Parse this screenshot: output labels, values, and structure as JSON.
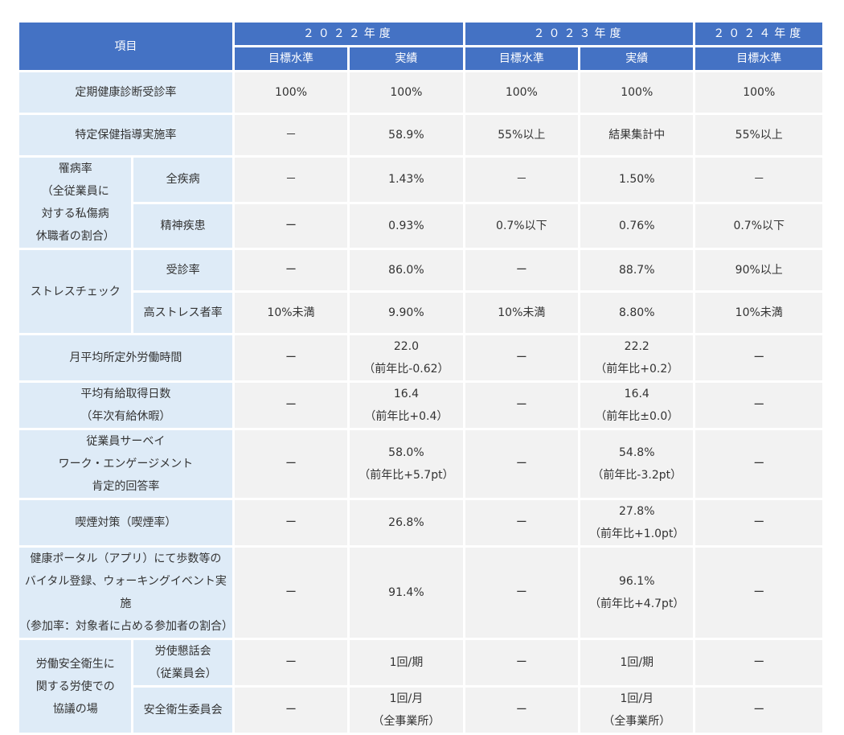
{
  "header": {
    "item": "項目",
    "years": [
      "２０２２年度",
      "２０２３年度",
      "２０２４年度"
    ],
    "sub": {
      "target": "目標水準",
      "actual": "実績"
    }
  },
  "rows": {
    "checkup": {
      "label": "定期健康診断受診率",
      "values": [
        "100%",
        "100%",
        "100%",
        "100%",
        "100%"
      ]
    },
    "guidance": {
      "label": "特定保健指導実施率",
      "values": [
        "－",
        "58.9%",
        "55%以上",
        "結果集計中",
        "55%以上"
      ]
    },
    "illness": {
      "group_lines": [
        "罹病率",
        "（全従業員に",
        "対する私傷病",
        "休職者の割合）"
      ],
      "all": {
        "label": "全疾病",
        "values": [
          "－",
          "1.43%",
          "－",
          "1.50%",
          "－"
        ]
      },
      "mental": {
        "label": "精神疾患",
        "values": [
          "ー",
          "0.93%",
          "0.7%以下",
          "0.76%",
          "0.7%以下"
        ]
      }
    },
    "stress": {
      "group": "ストレスチェック",
      "exam": {
        "label": "受診率",
        "values": [
          "ー",
          "86.0%",
          "ー",
          "88.7%",
          "90%以上"
        ]
      },
      "high": {
        "label": "高ストレス者率",
        "values": [
          "10%未満",
          "9.90%",
          "10%未満",
          "8.80%",
          "10%未満"
        ]
      }
    },
    "overtime": {
      "label": "月平均所定外労働時間",
      "values": [
        [
          "ー"
        ],
        [
          "22.0",
          "（前年比-0.62）"
        ],
        [
          "ー"
        ],
        [
          "22.2",
          "（前年比+0.2）"
        ],
        [
          "ー"
        ]
      ]
    },
    "leave": {
      "label_lines": [
        "平均有給取得日数",
        "（年次有給休暇）"
      ],
      "values": [
        [
          "ー"
        ],
        [
          "16.4",
          "（前年比+0.4）"
        ],
        [
          "ー"
        ],
        [
          "16.4",
          "（前年比±0.0）"
        ],
        [
          "ー"
        ]
      ]
    },
    "survey": {
      "label_lines": [
        "従業員サーベイ",
        "ワーク・エンゲージメント",
        "肯定的回答率"
      ],
      "values": [
        [
          "ー"
        ],
        [
          "58.0%",
          "（前年比+5.7pt）"
        ],
        [
          "ー"
        ],
        [
          "54.8%",
          "（前年比-3.2pt）"
        ],
        [
          "ー"
        ]
      ]
    },
    "smoking": {
      "label": "喫煙対策（喫煙率）",
      "values": [
        [
          "ー"
        ],
        [
          "26.8%"
        ],
        [
          "ー"
        ],
        [
          "27.8%",
          "（前年比+1.0pt）"
        ],
        [
          "ー"
        ]
      ]
    },
    "portal": {
      "label_lines": [
        "健康ポータル（アプリ）にて歩数等の",
        "バイタル登録、ウォーキングイベント実施",
        "（参加率：対象者に占める参加者の割合）"
      ],
      "values": [
        [
          "ー"
        ],
        [
          "91.4%"
        ],
        [
          "ー"
        ],
        [
          "96.1%",
          "（前年比+4.7pt）"
        ],
        [
          "ー"
        ]
      ]
    },
    "safety": {
      "group_lines": [
        "労働安全衛生に",
        "関する労使での",
        "協議の場"
      ],
      "council": {
        "label_lines": [
          "労使懇話会",
          "（従業員会）"
        ],
        "values": [
          [
            "ー"
          ],
          [
            "1回/期"
          ],
          [
            "ー"
          ],
          [
            "1回/期"
          ],
          [
            "ー"
          ]
        ]
      },
      "committee": {
        "label": "安全衛生委員会",
        "values": [
          [
            "ー"
          ],
          [
            "1回/月",
            "（全事業所）"
          ],
          [
            "ー"
          ],
          [
            "1回/月",
            "（全事業所）"
          ],
          [
            "ー"
          ]
        ]
      }
    }
  }
}
